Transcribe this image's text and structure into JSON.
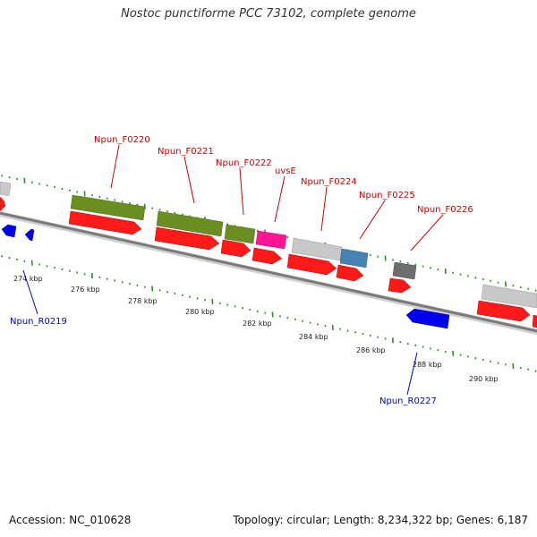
{
  "title": "Nostoc punctiforme PCC 73102, complete genome",
  "footer": {
    "accession": "Accession: NC_010628",
    "info": "Topology: circular; Length: 8,234,322 bp; Genes: 6,187"
  },
  "colors": {
    "backbone": "#8a8a8a",
    "tick": "#2e8b2e",
    "forward_label": "#cc0000",
    "reverse_label": "#0000cc",
    "red_feature": "#ff1a1a",
    "green_feature": "#6b8e23",
    "grey_feature": "#c8c8c8",
    "dark_grey_feature": "#6e6e6e",
    "magenta_feature": "#ff1493",
    "steelblue_feature": "#4682b4",
    "blue_feature": "#0000ee"
  },
  "kbp_ticks": [
    "274 kbp",
    "276 kbp",
    "278 kbp",
    "280 kbp",
    "282 kbp",
    "284 kbp",
    "286 kbp",
    "288 kbp",
    "290 kbp"
  ],
  "gene_labels": {
    "forward": [
      "Npun_F0220",
      "Npun_F0221",
      "Npun_F0222",
      "uvsE",
      "Npun_F0224",
      "Npun_F0225",
      "Npun_F0226"
    ],
    "reverse": [
      "Npun_R0219",
      "Npun_R0227"
    ]
  }
}
